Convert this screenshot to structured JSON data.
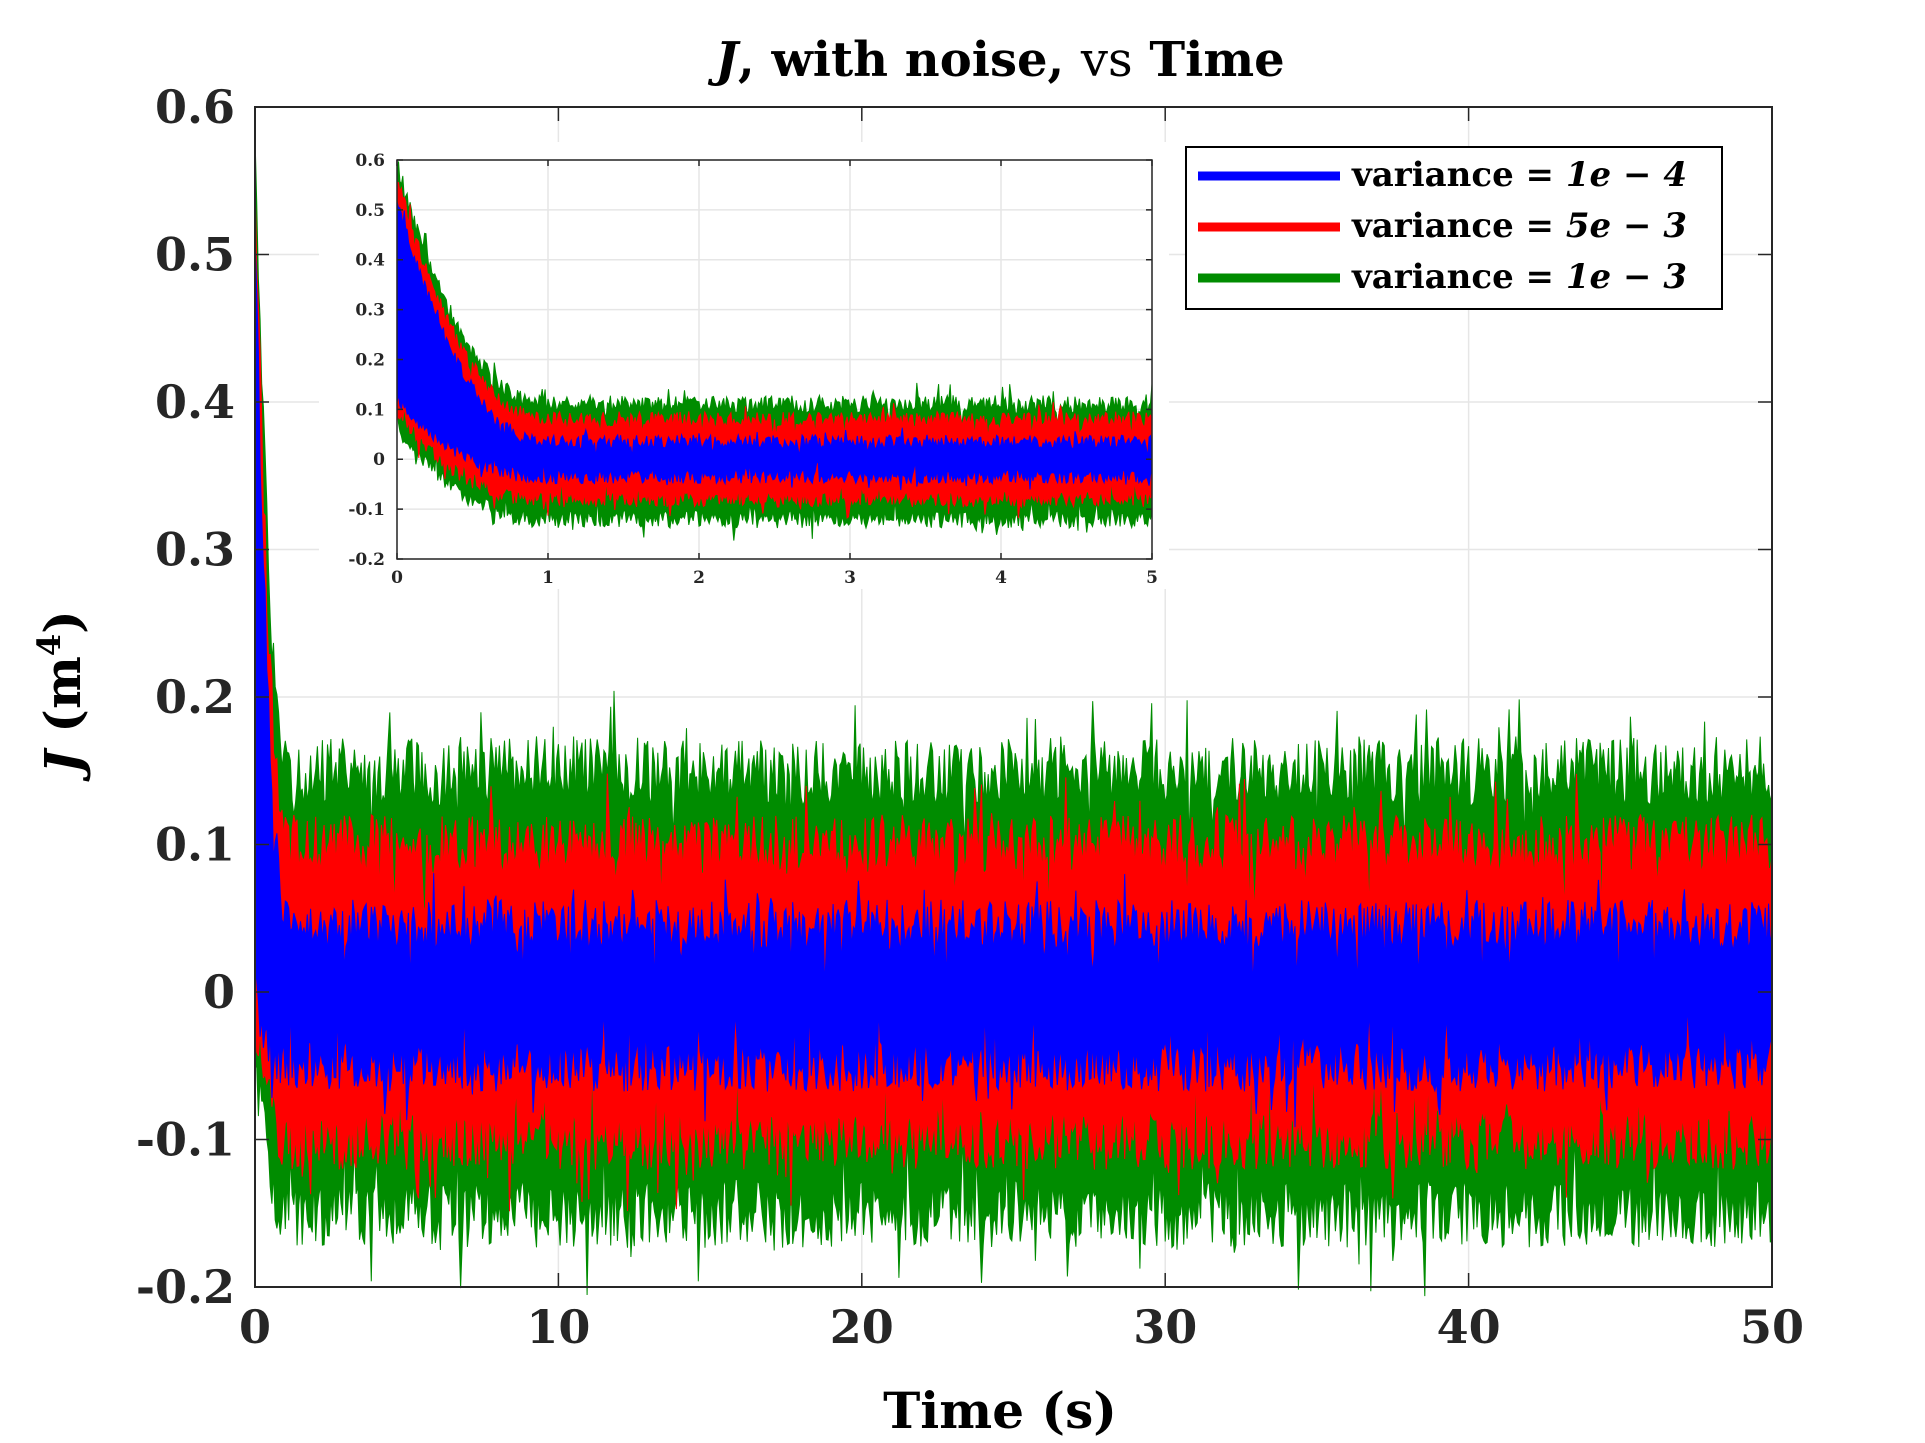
{
  "chart_data": [
    {
      "type": "area",
      "role": "main",
      "title": {
        "part1": "J",
        "part2": ", with noise, ",
        "part3": "vs",
        "part4": " Time"
      },
      "xlabel": "Time (s)",
      "ylabel": {
        "sym": "J",
        "rest": " (m",
        "sup": "4",
        "close": ")"
      },
      "xlim": [
        0,
        50
      ],
      "ylim": [
        -0.2,
        0.6
      ],
      "xticks": [
        0,
        10,
        20,
        30,
        40,
        50
      ],
      "yticks": [
        -0.2,
        -0.1,
        0,
        0.1,
        0.2,
        0.3,
        0.4,
        0.5,
        0.6
      ],
      "xtick_labels": [
        "0",
        "10",
        "20",
        "30",
        "40",
        "50"
      ],
      "ytick_labels": [
        "-0.2",
        "-0.1",
        "0",
        "0.1",
        "0.2",
        "0.3",
        "0.4",
        "0.5",
        "0.6"
      ],
      "grid": true,
      "legend_position": "top-right",
      "series": [
        {
          "name": "variance = 1e − 4",
          "label_text": "variance",
          "label_value": "= 1e − 4",
          "color": "#0000ff",
          "band": {
            "start_upper": 0.52,
            "start_lower": 0.0,
            "settled_upper": 0.045,
            "settled_lower": -0.05,
            "settle_time": 1.1
          }
        },
        {
          "name": "variance = 5e − 3",
          "label_text": "variance",
          "label_value": "= 5e − 3",
          "color": "#ff0000",
          "band": {
            "start_upper": 0.56,
            "start_lower": -0.02,
            "settled_upper": 0.1,
            "settled_lower": -0.1,
            "settle_time": 1.1
          }
        },
        {
          "name": "variance = 1e − 3",
          "label_text": "variance",
          "label_value": "= 1e − 3",
          "color": "#008c00",
          "band": {
            "start_upper": 0.59,
            "start_lower": -0.04,
            "settled_upper": 0.15,
            "settled_lower": -0.15,
            "settle_time": 1.1
          }
        }
      ]
    },
    {
      "type": "area",
      "role": "inset",
      "xlim": [
        0,
        5
      ],
      "ylim": [
        -0.2,
        0.6
      ],
      "xticks": [
        0,
        1,
        2,
        3,
        4,
        5
      ],
      "yticks": [
        -0.2,
        -0.1,
        0,
        0.1,
        0.2,
        0.3,
        0.4,
        0.5,
        0.6
      ],
      "xtick_labels": [
        "0",
        "1",
        "2",
        "3",
        "4",
        "5"
      ],
      "ytick_labels": [
        "-0.2",
        "-0.1",
        "0",
        "0.1",
        "0.2",
        "0.3",
        "0.4",
        "0.5",
        "0.6"
      ],
      "grid": true,
      "series": [
        {
          "name": "variance = 1e − 4",
          "color": "#0000ff",
          "band": {
            "start_upper": 0.52,
            "start_lower": 0.12,
            "settled_upper": 0.035,
            "settled_lower": -0.035,
            "settle_time": 1.0
          }
        },
        {
          "name": "variance = 5e − 3",
          "color": "#ff0000",
          "band": {
            "start_upper": 0.56,
            "start_lower": 0.09,
            "settled_upper": 0.08,
            "settled_lower": -0.08,
            "settle_time": 1.0
          }
        },
        {
          "name": "variance = 1e − 3",
          "color": "#008c00",
          "band": {
            "start_upper": 0.59,
            "start_lower": 0.06,
            "settled_upper": 0.11,
            "settled_lower": -0.12,
            "settle_time": 1.0
          }
        }
      ]
    }
  ]
}
